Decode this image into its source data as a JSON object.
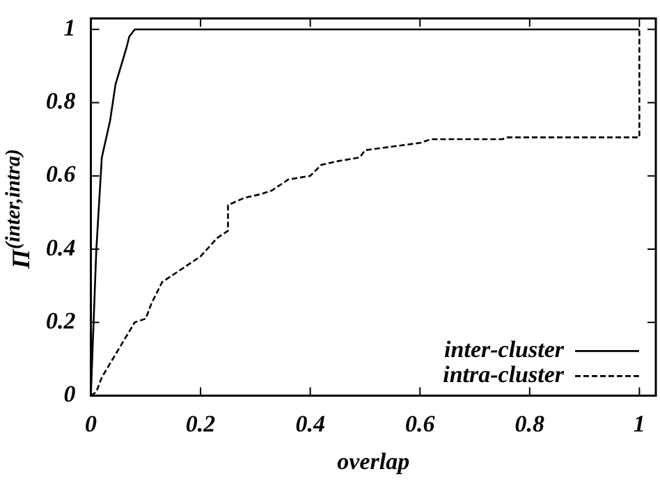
{
  "chart_data": {
    "type": "line",
    "xlabel": "overlap",
    "ylabel": "Π$^{(inter,intra)}$",
    "xlim": [
      0,
      1.03
    ],
    "ylim": [
      0,
      1.03
    ],
    "xticks": [
      0,
      0.2,
      0.4,
      0.6,
      0.8,
      1
    ],
    "yticks": [
      0,
      0.2,
      0.4,
      0.6,
      0.8,
      1
    ],
    "legend": "bottom right",
    "marker": "none",
    "grid": false,
    "series": [
      {
        "name": "inter-cluster",
        "color": "#000000",
        "line_style": "solid",
        "x": [
          0,
          0.01,
          0.02,
          0.035,
          0.045,
          0.055,
          0.065,
          0.07,
          0.08,
          1
        ],
        "values": [
          0,
          0.4,
          0.65,
          0.75,
          0.85,
          0.9,
          0.95,
          0.98,
          1,
          1
        ]
      },
      {
        "name": "intra-cluster",
        "color": "#000000",
        "line_style": "dashed",
        "x": [
          0,
          0.01,
          0.02,
          0.04,
          0.06,
          0.08,
          0.1,
          0.11,
          0.13,
          0.17,
          0.2,
          0.23,
          0.25,
          0.25,
          0.28,
          0.31,
          0.33,
          0.36,
          0.4,
          0.42,
          0.45,
          0.49,
          0.5,
          0.55,
          0.6,
          0.62,
          0.75,
          0.76,
          1,
          1
        ],
        "values": [
          0,
          0.01,
          0.05,
          0.1,
          0.15,
          0.2,
          0.21,
          0.25,
          0.31,
          0.35,
          0.38,
          0.43,
          0.45,
          0.52,
          0.54,
          0.55,
          0.56,
          0.59,
          0.6,
          0.63,
          0.64,
          0.65,
          0.67,
          0.68,
          0.69,
          0.7,
          0.7,
          0.705,
          0.705,
          1
        ]
      }
    ]
  }
}
